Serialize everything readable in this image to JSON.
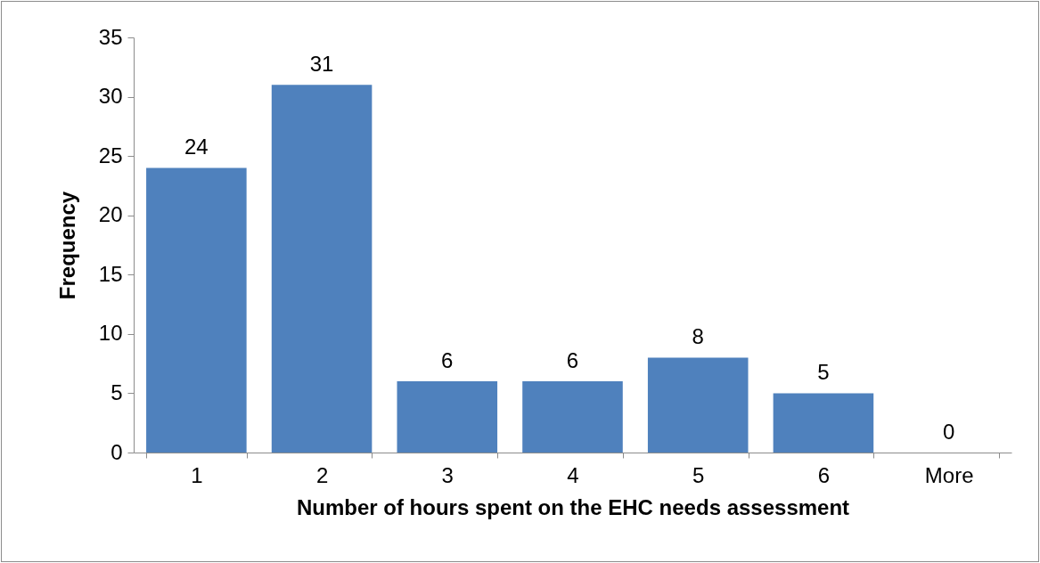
{
  "chart_data": {
    "type": "bar",
    "xlabel": "Number of hours spent on the EHC needs assessment",
    "ylabel": "Frequency",
    "categories": [
      "1",
      "2",
      "3",
      "4",
      "5",
      "6",
      "More"
    ],
    "values": [
      24,
      31,
      6,
      6,
      8,
      5,
      0
    ],
    "color": "#4f81bd",
    "ylim": [
      0,
      35
    ],
    "yticks": [
      0,
      5,
      10,
      15,
      20,
      25,
      30,
      35
    ],
    "grid": false,
    "data_labels": true
  }
}
